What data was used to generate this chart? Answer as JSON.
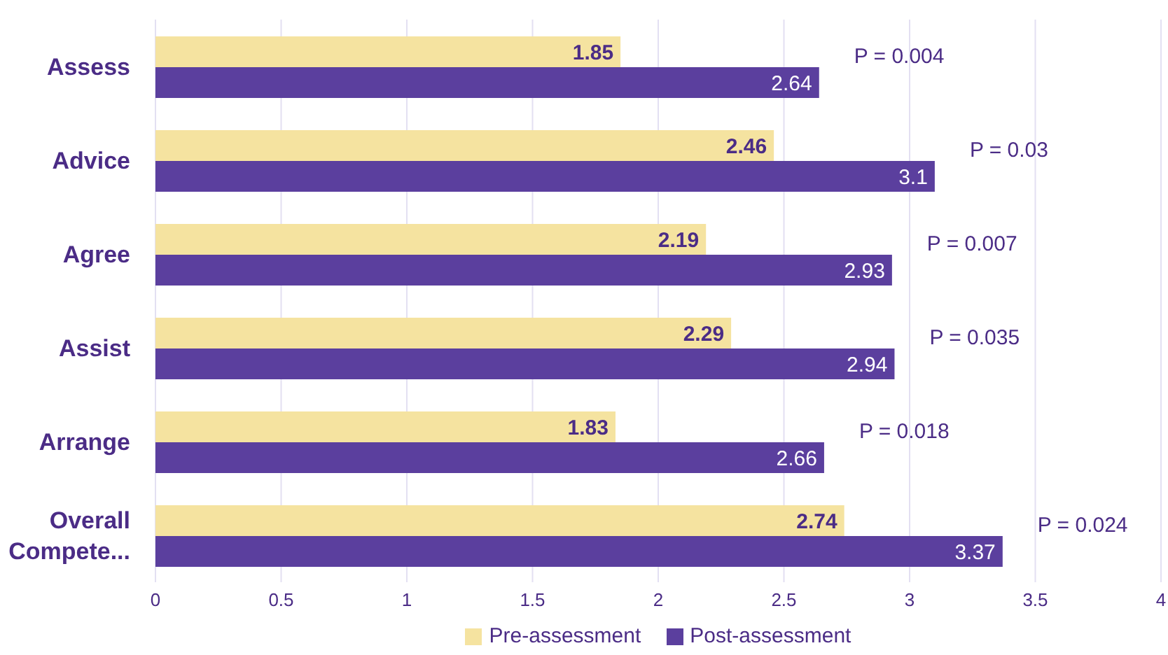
{
  "chart_data": {
    "type": "bar",
    "orientation": "horizontal",
    "categories": [
      "Assess",
      "Advice",
      "Agree",
      "Assist",
      "Arrange",
      "Overall Compete..."
    ],
    "series": [
      {
        "name": "Pre-assessment",
        "color": "#f5e3a0",
        "values": [
          1.85,
          2.46,
          2.19,
          2.29,
          1.83,
          2.74
        ]
      },
      {
        "name": "Post-assessment",
        "color": "#5b3f9e",
        "values": [
          2.64,
          3.1,
          2.93,
          2.94,
          2.66,
          3.37
        ]
      }
    ],
    "xlim": [
      0,
      4
    ],
    "xticks": [
      0,
      0.5,
      1,
      1.5,
      2,
      2.5,
      3,
      3.5,
      4
    ],
    "grid": "x",
    "legend": "bottom",
    "data_labels": true,
    "annotations": [
      "P = 0.004",
      "P = 0.03",
      "P = 0.007",
      "P = 0.035",
      "P = 0.018",
      "P = 0.024"
    ]
  }
}
